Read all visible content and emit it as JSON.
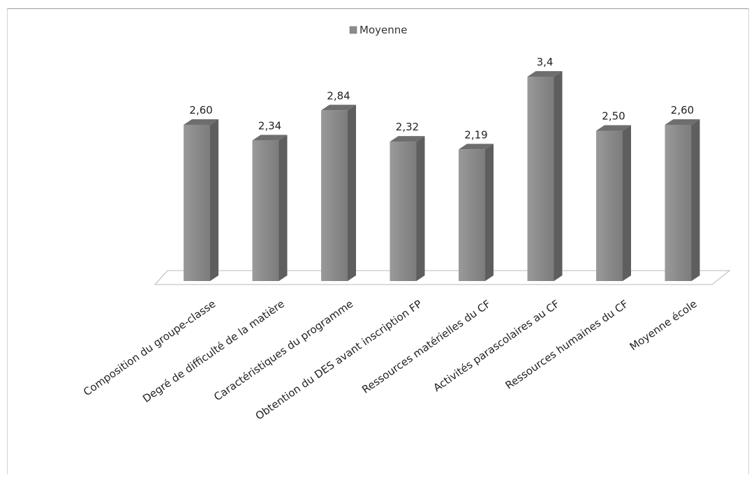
{
  "chart_data": {
    "type": "bar",
    "legend": "Moyenne",
    "legend_position": "top-center",
    "categories": [
      "Composition du groupe-classe",
      "Degré de difficulté de la matière",
      "Caractéristiques du programme",
      "Obtention du DES avant inscription FP",
      "Ressources matérielles du CF",
      "Activités parascolaires au CF",
      "Ressources humaines du CF",
      "Moyenne école"
    ],
    "series": [
      {
        "name": "Moyenne",
        "values": [
          2.6,
          2.34,
          2.84,
          2.32,
          2.19,
          3.4,
          2.5,
          2.6
        ],
        "labels": [
          "2,60",
          "2,34",
          "2,84",
          "2,32",
          "2,19",
          "3,4",
          "2,50",
          "2,60"
        ]
      }
    ],
    "ylim": [
      0,
      3.4
    ],
    "grid": false,
    "colors": {
      "bar_front": "#8c8c8c",
      "bar_side": "#5e5e5e",
      "bar_top": "#6e6e6e"
    }
  }
}
